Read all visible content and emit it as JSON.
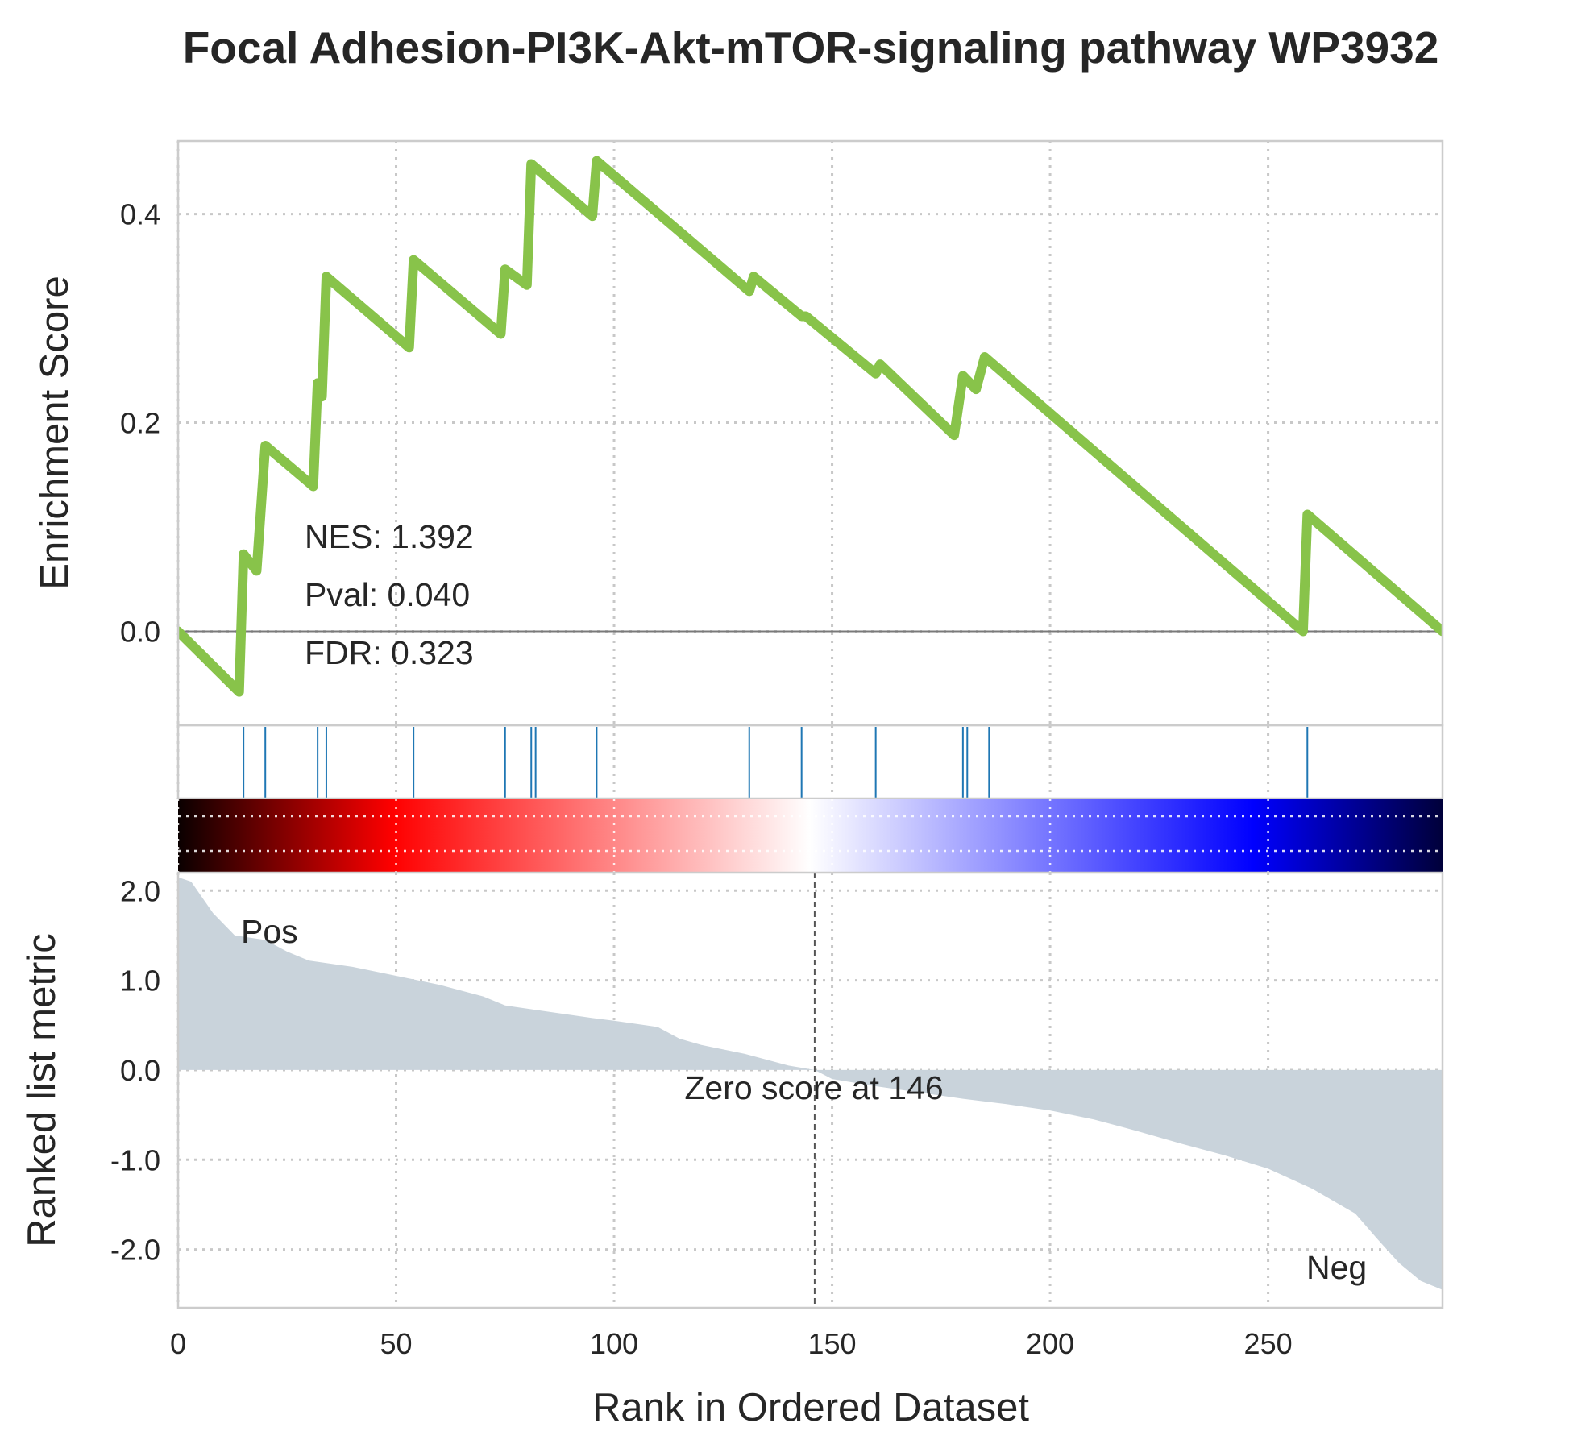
{
  "chart_data": {
    "type": "line",
    "title": "Focal Adhesion-PI3K-Akt-mTOR-signaling pathway WP3932",
    "xlabel": "Rank in Ordered Dataset",
    "xlim": [
      0,
      290
    ],
    "x_ticks": [
      0,
      50,
      100,
      150,
      200,
      250
    ],
    "x_tick_labels": [
      "0",
      "50",
      "100",
      "150",
      "200",
      "250"
    ],
    "grid": true,
    "enrichment": {
      "ylabel": "Enrichment Score",
      "ylim": [
        -0.09,
        0.47
      ],
      "y_ticks": [
        0.0,
        0.2,
        0.4
      ],
      "y_tick_labels": [
        "0.0",
        "0.2",
        "0.4"
      ],
      "line_color": "#88c34a",
      "series": [
        {
          "x": [
            0,
            14,
            15,
            18,
            20,
            31,
            32,
            33,
            34,
            53,
            54,
            74,
            75,
            80,
            81,
            95,
            96,
            131,
            132,
            143,
            144,
            160,
            161,
            178,
            180,
            183,
            185,
            258,
            259,
            290
          ],
          "values": [
            0.0,
            -0.058,
            0.074,
            0.058,
            0.178,
            0.139,
            0.238,
            0.225,
            0.34,
            0.272,
            0.356,
            0.285,
            0.347,
            0.332,
            0.448,
            0.398,
            0.451,
            0.326,
            0.34,
            0.302,
            0.302,
            0.247,
            0.256,
            0.188,
            0.245,
            0.232,
            0.263,
            0.0,
            0.112,
            0.0
          ]
        }
      ],
      "stats": {
        "nes": "NES: 1.392",
        "pval": "Pval: 0.040",
        "fdr": "FDR: 0.323"
      }
    },
    "hits": {
      "color": "#1f77b4",
      "positions": [
        15,
        20,
        32,
        34,
        54,
        75,
        81,
        82,
        96,
        131,
        143,
        160,
        180,
        181,
        186,
        259
      ]
    },
    "colorbar": {
      "colors": [
        "#0a0000",
        "#ff0000",
        "#ffffff",
        "#0000ff",
        "#00003a"
      ],
      "stops": [
        0,
        0.17,
        0.5,
        0.85,
        1
      ]
    },
    "ranked_metric": {
      "ylabel": "Ranked list metric",
      "ylim": [
        -2.65,
        2.2
      ],
      "y_ticks": [
        2.0,
        1.0,
        0.0,
        -1.0,
        -2.0
      ],
      "y_tick_labels": [
        "2.0",
        "1.0",
        "0.0",
        "-1.0",
        "-2.0"
      ],
      "fill_color": "#c9d3db",
      "series": [
        {
          "x": [
            0,
            3,
            8,
            13,
            20,
            25,
            30,
            40,
            50,
            60,
            70,
            75,
            85,
            95,
            100,
            110,
            115,
            120,
            130,
            140,
            146,
            150,
            160,
            170,
            180,
            190,
            200,
            210,
            220,
            230,
            240,
            250,
            260,
            270,
            275,
            280,
            285,
            290
          ],
          "values": [
            2.15,
            2.1,
            1.75,
            1.5,
            1.45,
            1.32,
            1.22,
            1.15,
            1.05,
            0.95,
            0.82,
            0.72,
            0.65,
            0.58,
            0.55,
            0.48,
            0.35,
            0.28,
            0.18,
            0.05,
            0.0,
            -0.1,
            -0.18,
            -0.25,
            -0.32,
            -0.38,
            -0.45,
            -0.55,
            -0.68,
            -0.82,
            -0.95,
            -1.1,
            -1.32,
            -1.6,
            -1.88,
            -2.15,
            -2.35,
            -2.45
          ]
        }
      ],
      "zero_cross": 146,
      "zero_label": "Zero score at 146",
      "pos_label": "Pos",
      "neg_label": "Neg",
      "pos_color": "#ff0000",
      "neg_color": "#0000ff"
    }
  }
}
